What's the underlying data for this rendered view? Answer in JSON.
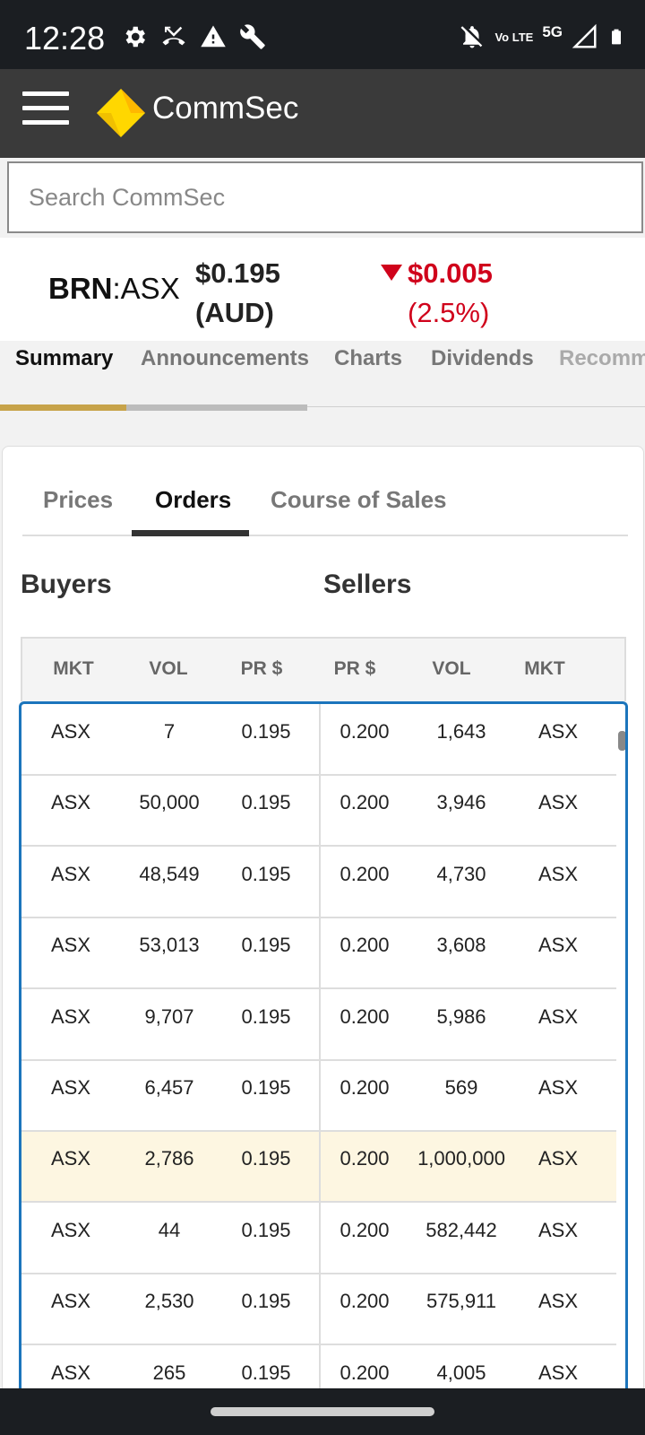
{
  "status_bar": {
    "time": "12:28",
    "left_icons": [
      "settings-icon",
      "missed-call-icon",
      "warning-icon",
      "wrench-icon"
    ],
    "right_icons": [
      "bell-off-icon",
      "volte-icon",
      "signal-icon",
      "battery-icon"
    ],
    "volte_text": "Vo LTE",
    "network": "5G"
  },
  "app_bar": {
    "brand": "CommSec",
    "logo_color": "#ffd700"
  },
  "search": {
    "placeholder": "Search CommSec"
  },
  "quote": {
    "ticker": "BRN",
    "exchange": ":ASX",
    "price": "$0.195",
    "currency": "(AUD)",
    "change": "$0.005",
    "change_pct": "(2.5%)",
    "direction": "down",
    "down_color": "#d0021b"
  },
  "tabs": [
    {
      "label": "Summary",
      "active": true
    },
    {
      "label": "Announcements",
      "active": false
    },
    {
      "label": "Charts",
      "active": false
    },
    {
      "label": "Dividends",
      "active": false
    },
    {
      "label": "Recomm",
      "active": false
    }
  ],
  "subtabs": [
    {
      "label": "Prices",
      "active": false
    },
    {
      "label": "Orders",
      "active": true
    },
    {
      "label": "Course of Sales",
      "active": false
    }
  ],
  "depth": {
    "buyers_title": "Buyers",
    "sellers_title": "Sellers",
    "columns": [
      "MKT",
      "VOL",
      "PR $",
      "PR $",
      "VOL",
      "MKT"
    ],
    "rows": [
      [
        "ASX",
        "7",
        "0.195",
        "0.200",
        "1,643",
        "ASX"
      ],
      [
        "ASX",
        "50,000",
        "0.195",
        "0.200",
        "3,946",
        "ASX"
      ],
      [
        "ASX",
        "48,549",
        "0.195",
        "0.200",
        "4,730",
        "ASX"
      ],
      [
        "ASX",
        "53,013",
        "0.195",
        "0.200",
        "3,608",
        "ASX"
      ],
      [
        "ASX",
        "9,707",
        "0.195",
        "0.200",
        "5,986",
        "ASX"
      ],
      [
        "ASX",
        "6,457",
        "0.195",
        "0.200",
        "569",
        "ASX"
      ],
      [
        "ASX",
        "2,786",
        "0.195",
        "0.200",
        "1,000,000",
        "ASX"
      ],
      [
        "ASX",
        "44",
        "0.195",
        "0.200",
        "582,442",
        "ASX"
      ],
      [
        "ASX",
        "2,530",
        "0.195",
        "0.200",
        "575,911",
        "ASX"
      ],
      [
        "ASX",
        "265",
        "0.195",
        "0.200",
        "4,005",
        "ASX"
      ]
    ],
    "highlighted_row": 6,
    "highlight_color": "#fdf6e1",
    "border_color": "#1c75bc"
  }
}
